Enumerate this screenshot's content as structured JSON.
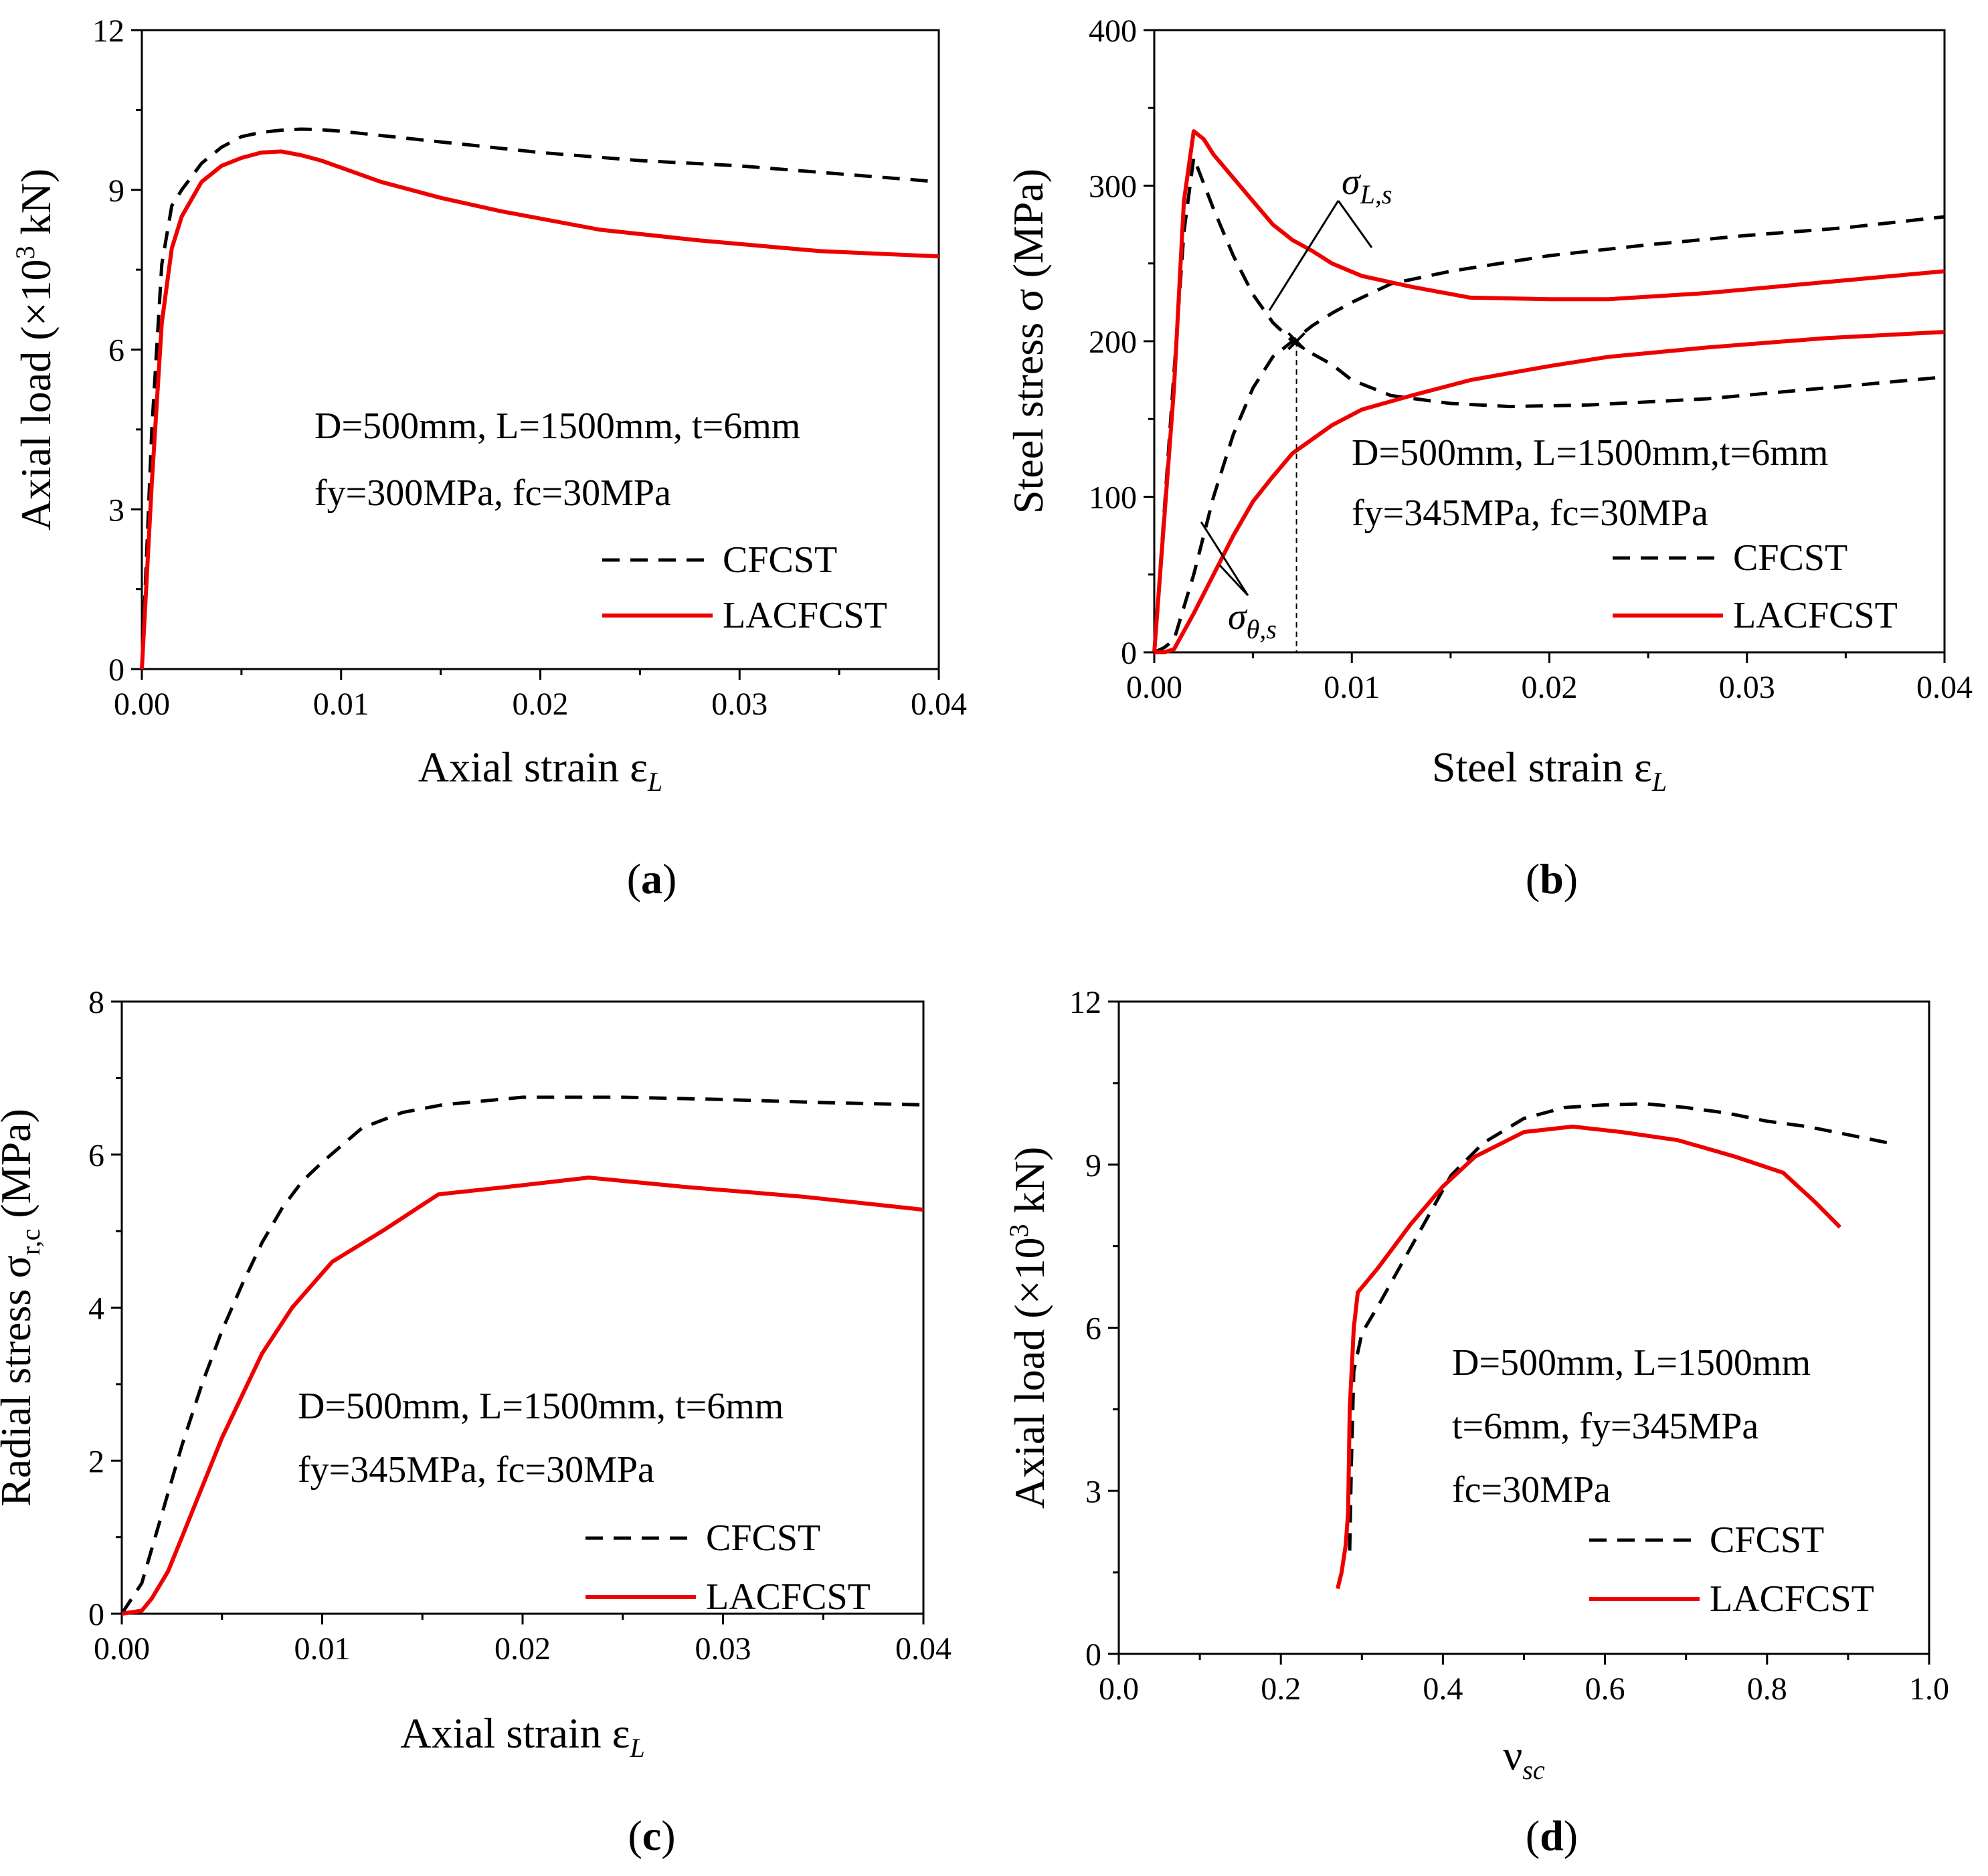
{
  "chart_data": [
    {
      "type": "line",
      "panel": "a",
      "caption": {
        "open": "(",
        "letter": "a",
        "close": ")"
      },
      "xlabel": "Axial strain ε",
      "xlabel_sub": "L",
      "ylabel": "Axial load (×10",
      "ylabel_sup": "3",
      "ylabel_tail": " kN)",
      "xlim": [
        0,
        0.04
      ],
      "ylim": [
        0,
        12
      ],
      "xticks": [
        0,
        0.01,
        0.02,
        0.03,
        0.04
      ],
      "xtick_labels": [
        "0.00",
        "0.01",
        "0.02",
        "0.03",
        "0.04"
      ],
      "yticks": [
        0,
        3,
        6,
        9,
        12
      ],
      "ytick_labels": [
        "0",
        "3",
        "6",
        "9",
        "12"
      ],
      "annotation_lines": [
        "D=500mm, L=1500mm, t=6mm",
        "fy=300MPa, fc=30MPa"
      ],
      "legend": [
        "CFCST",
        "LACFCST"
      ],
      "series": [
        {
          "name": "CFCST",
          "style": "dashed",
          "color": "#000000",
          "x": [
            0,
            0.0005,
            0.001,
            0.0015,
            0.002,
            0.003,
            0.004,
            0.005,
            0.006,
            0.007,
            0.008,
            0.009,
            0.01,
            0.015,
            0.02,
            0.025,
            0.03,
            0.035,
            0.04
          ],
          "y": [
            0,
            4.5,
            7.6,
            8.7,
            9.0,
            9.5,
            9.8,
            10.0,
            10.08,
            10.12,
            10.14,
            10.13,
            10.1,
            9.9,
            9.7,
            9.55,
            9.45,
            9.3,
            9.15
          ]
        },
        {
          "name": "LACFCST",
          "style": "solid",
          "color": "#ee0000",
          "x": [
            0,
            0.0005,
            0.001,
            0.0015,
            0.002,
            0.003,
            0.004,
            0.005,
            0.006,
            0.007,
            0.008,
            0.009,
            0.012,
            0.015,
            0.018,
            0.023,
            0.028,
            0.034,
            0.04
          ],
          "y": [
            0,
            3.5,
            6.5,
            7.9,
            8.5,
            9.15,
            9.45,
            9.6,
            9.7,
            9.72,
            9.65,
            9.55,
            9.15,
            8.85,
            8.6,
            8.25,
            8.05,
            7.85,
            7.75
          ]
        }
      ]
    },
    {
      "type": "line",
      "panel": "b",
      "caption": {
        "open": "(",
        "letter": "b",
        "close": ")"
      },
      "xlabel": "Steel strain ε",
      "xlabel_sub": "L",
      "ylabel": "Steel stress σ (MPa)",
      "xlim": [
        0,
        0.04
      ],
      "ylim": [
        0,
        400
      ],
      "xticks": [
        0,
        0.01,
        0.02,
        0.03,
        0.04
      ],
      "xtick_labels": [
        "0.00",
        "0.01",
        "0.02",
        "0.03",
        "0.04"
      ],
      "yticks": [
        0,
        100,
        200,
        300,
        400
      ],
      "ytick_labels": [
        "0",
        "100",
        "200",
        "300",
        "400"
      ],
      "annotation_lines": [
        "D=500mm, L=1500mm,t=6mm",
        "fy=345MPa, fc=30MPa"
      ],
      "label_sigma_L": {
        "base": "σ",
        "sub": "L,s"
      },
      "label_sigma_theta": {
        "base": "σ",
        "sub": "θ,s"
      },
      "legend": [
        "CFCST",
        "LACFCST"
      ],
      "series": [
        {
          "name": "CFCST σL,s",
          "style": "dashed",
          "color": "#000000",
          "x": [
            0,
            0.0005,
            0.001,
            0.0015,
            0.002,
            0.003,
            0.004,
            0.005,
            0.006,
            0.007,
            0.008,
            0.009,
            0.01,
            0.012,
            0.015,
            0.018,
            0.022,
            0.028,
            0.034,
            0.04
          ],
          "y": [
            0,
            90,
            180,
            270,
            318,
            285,
            255,
            230,
            212,
            200,
            192,
            185,
            175,
            165,
            160,
            158,
            159,
            163,
            170,
            177
          ]
        },
        {
          "name": "CFCST σθ,s",
          "style": "dashed",
          "color": "#000000",
          "x": [
            0,
            0.0005,
            0.001,
            0.002,
            0.003,
            0.004,
            0.005,
            0.006,
            0.007,
            0.008,
            0.009,
            0.01,
            0.012,
            0.015,
            0.02,
            0.025,
            0.03,
            0.035,
            0.04
          ],
          "y": [
            0,
            3,
            8,
            50,
            100,
            140,
            170,
            190,
            200,
            210,
            218,
            225,
            237,
            245,
            255,
            262,
            268,
            273,
            280
          ]
        },
        {
          "name": "LACFCST σL,s",
          "style": "solid",
          "color": "#ee0000",
          "x": [
            0,
            0.0005,
            0.001,
            0.0015,
            0.002,
            0.0025,
            0.003,
            0.004,
            0.005,
            0.006,
            0.007,
            0.008,
            0.009,
            0.0105,
            0.013,
            0.016,
            0.02,
            0.023,
            0.028,
            0.034,
            0.04
          ],
          "y": [
            0,
            85,
            170,
            290,
            335,
            330,
            320,
            305,
            290,
            275,
            265,
            258,
            250,
            242,
            235,
            228,
            227,
            227,
            231,
            238,
            245
          ]
        },
        {
          "name": "LACFCST σθ,s",
          "style": "solid",
          "color": "#ee0000",
          "x": [
            0,
            0.0005,
            0.001,
            0.002,
            0.003,
            0.004,
            0.005,
            0.006,
            0.007,
            0.008,
            0.009,
            0.0105,
            0.013,
            0.016,
            0.02,
            0.023,
            0.028,
            0.034,
            0.04
          ],
          "y": [
            0,
            0,
            2,
            25,
            50,
            75,
            97,
            113,
            128,
            137,
            146,
            156,
            165,
            175,
            184,
            190,
            196,
            202,
            206
          ]
        }
      ]
    },
    {
      "type": "line",
      "panel": "c",
      "caption": {
        "open": "(",
        "letter": "c",
        "close": ")"
      },
      "xlabel": "Axial strain ε",
      "xlabel_sub": "L",
      "ylabel": "Radial stress σ",
      "ylabel_sub": "r,c",
      "ylabel_tail": " (MPa)",
      "xlim": [
        0,
        0.04
      ],
      "ylim": [
        0,
        8
      ],
      "xticks": [
        0,
        0.01,
        0.02,
        0.03,
        0.04
      ],
      "xtick_labels": [
        "0.00",
        "0.01",
        "0.02",
        "0.03",
        "0.04"
      ],
      "yticks": [
        0,
        2,
        4,
        6,
        8
      ],
      "ytick_labels": [
        "0",
        "2",
        "4",
        "6",
        "8"
      ],
      "annotation_lines": [
        "D=500mm, L=1500mm, t=6mm",
        "fy=345MPa, fc=30MPa"
      ],
      "legend": [
        "CFCST",
        "LACFCST"
      ],
      "series": [
        {
          "name": "CFCST",
          "style": "dashed",
          "color": "#000000",
          "x": [
            0,
            0.001,
            0.002,
            0.003,
            0.004,
            0.005,
            0.006,
            0.007,
            0.008,
            0.009,
            0.01,
            0.012,
            0.014,
            0.016,
            0.02,
            0.025,
            0.03,
            0.035,
            0.04
          ],
          "y": [
            0,
            0.4,
            1.3,
            2.2,
            3.0,
            3.7,
            4.3,
            4.85,
            5.3,
            5.65,
            5.9,
            6.35,
            6.55,
            6.65,
            6.75,
            6.75,
            6.72,
            6.68,
            6.65
          ]
        },
        {
          "name": "LACFCST",
          "style": "solid",
          "color": "#ee0000",
          "x": [
            0,
            0.0005,
            0.001,
            0.0015,
            0.0023,
            0.003,
            0.004,
            0.005,
            0.007,
            0.0085,
            0.0105,
            0.013,
            0.0158,
            0.02,
            0.0233,
            0.028,
            0.034,
            0.04
          ],
          "y": [
            0,
            0.02,
            0.04,
            0.2,
            0.55,
            1.0,
            1.65,
            2.3,
            3.4,
            4.0,
            4.6,
            5.0,
            5.48,
            5.6,
            5.7,
            5.58,
            5.45,
            5.28
          ]
        }
      ]
    },
    {
      "type": "line",
      "panel": "d",
      "caption": {
        "open": "(",
        "letter": "d",
        "close": ")"
      },
      "xlabel": "ν",
      "xlabel_sub": "sc",
      "ylabel": "Axial load (×10",
      "ylabel_sup": "3",
      "ylabel_tail": " kN)",
      "xlim": [
        0,
        1.0
      ],
      "ylim": [
        0,
        12
      ],
      "xticks": [
        0,
        0.2,
        0.4,
        0.6,
        0.8,
        1.0
      ],
      "xtick_labels": [
        "0.0",
        "0.2",
        "0.4",
        "0.6",
        "0.8",
        "1.0"
      ],
      "yticks": [
        0,
        3,
        6,
        9,
        12
      ],
      "ytick_labels": [
        "0",
        "3",
        "6",
        "9",
        "12"
      ],
      "annotation_lines": [
        "D=500mm, L=1500mm",
        "t=6mm, fy=345MPa",
        "fc=30MPa"
      ],
      "legend": [
        "CFCST",
        "LACFCST"
      ],
      "series": [
        {
          "name": "CFCST",
          "style": "dashed",
          "color": "#000000",
          "x": [
            0.285,
            0.287,
            0.29,
            0.3,
            0.32,
            0.35,
            0.38,
            0.41,
            0.45,
            0.5,
            0.55,
            0.6,
            0.65,
            0.7,
            0.75,
            0.8,
            0.85,
            0.9,
            0.95
          ],
          "y": [
            1.9,
            3.5,
            5.2,
            5.9,
            6.4,
            7.2,
            8.0,
            8.8,
            9.4,
            9.85,
            10.05,
            10.1,
            10.12,
            10.05,
            9.95,
            9.8,
            9.7,
            9.55,
            9.4
          ]
        },
        {
          "name": "LACFCST",
          "style": "solid",
          "color": "#ee0000",
          "x": [
            0.27,
            0.275,
            0.28,
            0.283,
            0.285,
            0.29,
            0.295,
            0.32,
            0.36,
            0.4,
            0.44,
            0.5,
            0.56,
            0.62,
            0.69,
            0.76,
            0.82,
            0.86,
            0.89
          ],
          "y": [
            1.2,
            1.5,
            2.0,
            2.6,
            4.5,
            6.0,
            6.65,
            7.1,
            7.9,
            8.6,
            9.15,
            9.6,
            9.7,
            9.6,
            9.45,
            9.15,
            8.85,
            8.3,
            7.85
          ]
        }
      ]
    }
  ]
}
